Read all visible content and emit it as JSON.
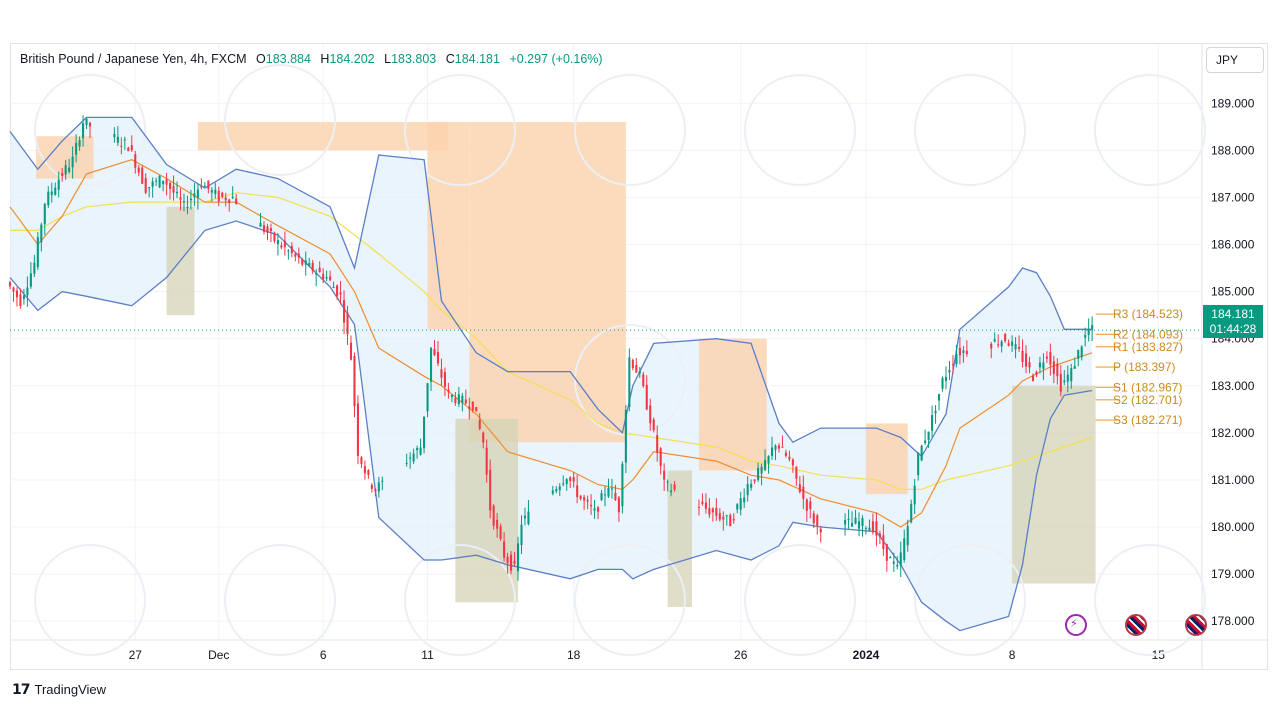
{
  "legend": {
    "symbol": "British Pound / Japanese Yen, 4h, FXCM",
    "o_label": "O",
    "o_value": "183.884",
    "h_label": "H",
    "h_value": "184.202",
    "l_label": "L",
    "l_value": "183.803",
    "c_label": "C",
    "c_value": "184.181",
    "change": "+0.297 (+0.16%)"
  },
  "currency": "JPY",
  "last_price": {
    "price": "184.181",
    "countdown": "01:44:28"
  },
  "brand": "TradingView",
  "colors": {
    "up": "#089981",
    "down": "#f23645",
    "bollinger": "#5b7fc7",
    "bollinger_fill": "#e3f0fb",
    "ma_fast": "#f08c2e",
    "ma_slow": "#f3df55",
    "supply_zone": "#fbd2ad",
    "demand_zone": "#d4d3b5",
    "pivot": "#f0a030"
  },
  "chart_data": {
    "type": "candlestick",
    "title": "British Pound / Japanese Yen, 4h, FXCM",
    "ylim": [
      177.6,
      189.6
    ],
    "y_ticks": [
      "189.000",
      "188.000",
      "187.000",
      "186.000",
      "185.000",
      "184.000",
      "183.000",
      "182.000",
      "181.000",
      "180.000",
      "179.000",
      "178.000"
    ],
    "x_ticks": [
      "27",
      "Dec",
      "6",
      "11",
      "18",
      "26",
      "2024",
      "8",
      "15"
    ],
    "x_range": [
      "2023-11-21",
      "2024-01-17"
    ],
    "grid": true,
    "price_path": [
      [
        "2023-11-21T00:00",
        185.2
      ],
      [
        "2023-11-21T16:00",
        184.8
      ],
      [
        "2023-11-22T08:00",
        185.6
      ],
      [
        "2023-11-22T20:00",
        186.9
      ],
      [
        "2023-11-23T12:00",
        187.4
      ],
      [
        "2023-11-24T04:00",
        187.8
      ],
      [
        "2023-11-24T16:00",
        188.6
      ],
      [
        "2023-11-26T20:00",
        188.1
      ],
      [
        "2023-11-27T16:00",
        187.2
      ],
      [
        "2023-11-28T12:00",
        187.4
      ],
      [
        "2023-11-29T12:00",
        186.8
      ],
      [
        "2023-11-30T08:00",
        187.3
      ],
      [
        "2023-12-01T04:00",
        187.0
      ],
      [
        "2023-12-01T20:00",
        187.0
      ],
      [
        "2023-12-03T20:00",
        186.1
      ],
      [
        "2023-12-05T04:00",
        185.6
      ],
      [
        "2023-12-06T08:00",
        185.3
      ],
      [
        "2023-12-07T00:00",
        184.9
      ],
      [
        "2023-12-07T12:00",
        183.6
      ],
      [
        "2023-12-07T20:00",
        181.6
      ],
      [
        "2023-12-08T08:00",
        181.0
      ],
      [
        "2023-12-08T16:00",
        180.8
      ],
      [
        "2023-12-10T20:00",
        181.7
      ],
      [
        "2023-12-11T08:00",
        183.8
      ],
      [
        "2023-12-11T16:00",
        183.4
      ],
      [
        "2023-12-12T04:00",
        182.8
      ],
      [
        "2023-12-12T16:00",
        182.7
      ],
      [
        "2023-12-13T08:00",
        182.6
      ],
      [
        "2023-12-13T20:00",
        181.8
      ],
      [
        "2023-12-14T04:00",
        180.4
      ],
      [
        "2023-12-14T20:00",
        179.4
      ],
      [
        "2023-12-15T08:00",
        179.1
      ],
      [
        "2023-12-15T16:00",
        180.1
      ],
      [
        "2023-12-17T20:00",
        181.1
      ],
      [
        "2023-12-18T12:00",
        180.6
      ],
      [
        "2023-12-19T04:00",
        180.3
      ],
      [
        "2023-12-19T20:00",
        180.9
      ],
      [
        "2023-12-20T08:00",
        180.4
      ],
      [
        "2023-12-20T20:00",
        183.6
      ],
      [
        "2023-12-21T08:00",
        183.2
      ],
      [
        "2023-12-21T20:00",
        182.3
      ],
      [
        "2023-12-22T12:00",
        180.9
      ],
      [
        "2023-12-24T20:00",
        180.3
      ],
      [
        "2023-12-25T16:00",
        180.1
      ],
      [
        "2023-12-26T12:00",
        180.9
      ],
      [
        "2023-12-27T08:00",
        181.3
      ],
      [
        "2023-12-27T20:00",
        181.8
      ],
      [
        "2023-12-28T12:00",
        181.4
      ],
      [
        "2023-12-29T04:00",
        180.6
      ],
      [
        "2023-12-29T20:00",
        180.0
      ],
      [
        "2023-12-31T20:00",
        180.1
      ],
      [
        "2024-01-01T12:00",
        180.0
      ],
      [
        "2024-01-02T04:00",
        179.4
      ],
      [
        "2024-01-02T16:00",
        179.1
      ],
      [
        "2024-01-03T04:00",
        180.0
      ],
      [
        "2024-01-03T16:00",
        181.5
      ],
      [
        "2024-01-04T08:00",
        182.3
      ],
      [
        "2024-01-04T20:00",
        183.1
      ],
      [
        "2024-01-05T12:00",
        183.7
      ],
      [
        "2024-01-07T20:00",
        184.0
      ],
      [
        "2024-01-08T12:00",
        183.7
      ],
      [
        "2024-01-09T04:00",
        183.2
      ],
      [
        "2024-01-09T20:00",
        183.7
      ],
      [
        "2024-01-10T12:00",
        183.0
      ],
      [
        "2024-01-11T00:00",
        183.3
      ],
      [
        "2024-01-11T12:00",
        183.9
      ],
      [
        "2024-01-11T20:00",
        184.181
      ]
    ],
    "bollinger_upper": [
      [
        "2023-11-21T00:00",
        188.4
      ],
      [
        "2023-11-22T08:00",
        187.6
      ],
      [
        "2023-11-23T12:00",
        188.2
      ],
      [
        "2023-11-24T16:00",
        188.7
      ],
      [
        "2023-11-26T20:00",
        188.7
      ],
      [
        "2023-11-28T12:00",
        187.7
      ],
      [
        "2023-11-30T08:00",
        187.2
      ],
      [
        "2023-12-01T20:00",
        187.6
      ],
      [
        "2023-12-03T20:00",
        187.4
      ],
      [
        "2023-12-06T08:00",
        186.8
      ],
      [
        "2023-12-07T12:00",
        185.5
      ],
      [
        "2023-12-08T16:00",
        187.9
      ],
      [
        "2023-12-10T20:00",
        187.8
      ],
      [
        "2023-12-11T16:00",
        184.8
      ],
      [
        "2023-12-13T08:00",
        183.7
      ],
      [
        "2023-12-14T20:00",
        183.3
      ],
      [
        "2023-12-17T20:00",
        183.3
      ],
      [
        "2023-12-19T04:00",
        182.5
      ],
      [
        "2023-12-20T08:00",
        182.0
      ],
      [
        "2023-12-20T20:00",
        183.0
      ],
      [
        "2023-12-21T20:00",
        183.9
      ],
      [
        "2023-12-24T20:00",
        184.0
      ],
      [
        "2023-12-26T12:00",
        183.9
      ],
      [
        "2023-12-27T20:00",
        182.2
      ],
      [
        "2023-12-28T12:00",
        181.8
      ],
      [
        "2023-12-29T20:00",
        182.1
      ],
      [
        "2024-01-01T12:00",
        182.1
      ],
      [
        "2024-01-02T16:00",
        181.9
      ],
      [
        "2024-01-03T16:00",
        181.5
      ],
      [
        "2024-01-04T20:00",
        182.4
      ],
      [
        "2024-01-05T12:00",
        184.2
      ],
      [
        "2024-01-07T20:00",
        185.1
      ],
      [
        "2024-01-08T12:00",
        185.5
      ],
      [
        "2024-01-09T04:00",
        185.4
      ],
      [
        "2024-01-09T20:00",
        184.9
      ],
      [
        "2024-01-10T12:00",
        184.2
      ],
      [
        "2024-01-11T20:00",
        184.2
      ]
    ],
    "bollinger_lower": [
      [
        "2023-11-21T00:00",
        185.3
      ],
      [
        "2023-11-22T08:00",
        184.6
      ],
      [
        "2023-11-23T12:00",
        185.0
      ],
      [
        "2023-11-24T16:00",
        184.9
      ],
      [
        "2023-11-26T20:00",
        184.7
      ],
      [
        "2023-11-28T12:00",
        185.3
      ],
      [
        "2023-11-30T08:00",
        186.3
      ],
      [
        "2023-12-01T20:00",
        186.5
      ],
      [
        "2023-12-03T20:00",
        186.2
      ],
      [
        "2023-12-06T08:00",
        185.1
      ],
      [
        "2023-12-07T12:00",
        184.3
      ],
      [
        "2023-12-08T16:00",
        180.2
      ],
      [
        "2023-12-10T20:00",
        179.3
      ],
      [
        "2023-12-11T16:00",
        179.3
      ],
      [
        "2023-12-13T08:00",
        179.4
      ],
      [
        "2023-12-14T20:00",
        179.2
      ],
      [
        "2023-12-17T20:00",
        178.9
      ],
      [
        "2023-12-19T04:00",
        179.1
      ],
      [
        "2023-12-20T08:00",
        179.1
      ],
      [
        "2023-12-20T20:00",
        178.9
      ],
      [
        "2023-12-21T20:00",
        179.1
      ],
      [
        "2023-12-24T20:00",
        179.5
      ],
      [
        "2023-12-26T12:00",
        179.3
      ],
      [
        "2023-12-27T20:00",
        179.6
      ],
      [
        "2023-12-28T12:00",
        180.1
      ],
      [
        "2023-12-29T20:00",
        180.0
      ],
      [
        "2024-01-01T12:00",
        179.9
      ],
      [
        "2024-01-02T16:00",
        179.2
      ],
      [
        "2024-01-03T16:00",
        178.4
      ],
      [
        "2024-01-04T20:00",
        178.0
      ],
      [
        "2024-01-05T12:00",
        177.8
      ],
      [
        "2024-01-07T20:00",
        178.1
      ],
      [
        "2024-01-08T12:00",
        179.2
      ],
      [
        "2024-01-09T04:00",
        181.1
      ],
      [
        "2024-01-09T20:00",
        182.3
      ],
      [
        "2024-01-10T12:00",
        182.8
      ],
      [
        "2024-01-11T20:00",
        182.9
      ]
    ],
    "ma_fast": [
      [
        "2023-11-21T00:00",
        186.8
      ],
      [
        "2023-11-22T08:00",
        186.0
      ],
      [
        "2023-11-23T12:00",
        186.6
      ],
      [
        "2023-11-24T16:00",
        187.5
      ],
      [
        "2023-11-26T20:00",
        187.8
      ],
      [
        "2023-11-28T12:00",
        187.4
      ],
      [
        "2023-11-30T08:00",
        186.9
      ],
      [
        "2023-12-01T20:00",
        186.9
      ],
      [
        "2023-12-03T20:00",
        186.4
      ],
      [
        "2023-12-06T08:00",
        185.8
      ],
      [
        "2023-12-07T12:00",
        185.0
      ],
      [
        "2023-12-08T16:00",
        183.8
      ],
      [
        "2023-12-10T20:00",
        183.2
      ],
      [
        "2023-12-11T16:00",
        183.0
      ],
      [
        "2023-12-13T08:00",
        182.4
      ],
      [
        "2023-12-14T20:00",
        181.6
      ],
      [
        "2023-12-17T20:00",
        181.2
      ],
      [
        "2023-12-19T04:00",
        180.9
      ],
      [
        "2023-12-20T08:00",
        180.8
      ],
      [
        "2023-12-20T20:00",
        181.0
      ],
      [
        "2023-12-21T20:00",
        181.6
      ],
      [
        "2023-12-24T20:00",
        181.4
      ],
      [
        "2023-12-26T12:00",
        181.1
      ],
      [
        "2023-12-27T20:00",
        181.0
      ],
      [
        "2023-12-29T20:00",
        180.6
      ],
      [
        "2024-01-01T12:00",
        180.3
      ],
      [
        "2024-01-02T16:00",
        180.0
      ],
      [
        "2024-01-03T16:00",
        180.3
      ],
      [
        "2024-01-04T20:00",
        181.3
      ],
      [
        "2024-01-05T12:00",
        182.1
      ],
      [
        "2024-01-07T20:00",
        182.8
      ],
      [
        "2024-01-08T12:00",
        183.1
      ],
      [
        "2024-01-09T20:00",
        183.4
      ],
      [
        "2024-01-11T20:00",
        183.7
      ]
    ],
    "ma_slow": [
      [
        "2023-11-21T00:00",
        186.3
      ],
      [
        "2023-11-22T08:00",
        186.3
      ],
      [
        "2023-11-23T12:00",
        186.6
      ],
      [
        "2023-11-24T16:00",
        186.8
      ],
      [
        "2023-11-26T20:00",
        186.9
      ],
      [
        "2023-11-28T12:00",
        186.9
      ],
      [
        "2023-11-30T08:00",
        186.9
      ],
      [
        "2023-12-01T20:00",
        187.1
      ],
      [
        "2023-12-03T20:00",
        187.0
      ],
      [
        "2023-12-06T08:00",
        186.6
      ],
      [
        "2023-12-07T12:00",
        186.2
      ],
      [
        "2023-12-08T16:00",
        185.8
      ],
      [
        "2023-12-10T20:00",
        185.0
      ],
      [
        "2023-12-11T16:00",
        184.6
      ],
      [
        "2023-12-13T08:00",
        184.0
      ],
      [
        "2023-12-14T20:00",
        183.3
      ],
      [
        "2023-12-17T20:00",
        182.7
      ],
      [
        "2023-12-19T04:00",
        182.2
      ],
      [
        "2023-12-20T08:00",
        182.0
      ],
      [
        "2023-12-21T20:00",
        181.9
      ],
      [
        "2023-12-24T20:00",
        181.7
      ],
      [
        "2023-12-26T12:00",
        181.4
      ],
      [
        "2023-12-27T20:00",
        181.3
      ],
      [
        "2023-12-29T20:00",
        181.1
      ],
      [
        "2024-01-01T12:00",
        181.0
      ],
      [
        "2024-01-02T16:00",
        180.8
      ],
      [
        "2024-01-03T16:00",
        180.8
      ],
      [
        "2024-01-04T20:00",
        181.0
      ],
      [
        "2024-01-07T20:00",
        181.3
      ],
      [
        "2024-01-09T20:00",
        181.6
      ],
      [
        "2024-01-11T20:00",
        181.9
      ]
    ],
    "supply_zones": [
      {
        "x0": "2023-11-22T06:00",
        "x1": "2023-11-25T00:00",
        "y0": 187.4,
        "y1": 188.3
      },
      {
        "x0": "2023-11-30T00:00",
        "x1": "2023-12-12T00:00",
        "y0": 188.6,
        "y1": 188.0
      },
      {
        "x0": "2023-12-11T00:00",
        "x1": "2023-12-13T00:00",
        "y0": 188.6,
        "y1": 184.2
      },
      {
        "x0": "2023-12-13T00:00",
        "x1": "2023-12-20T12:00",
        "y0": 188.6,
        "y1": 181.8
      },
      {
        "x0": "2023-12-24T00:00",
        "x1": "2023-12-27T06:00",
        "y0": 184.0,
        "y1": 181.2
      },
      {
        "x0": "2024-01-01T00:00",
        "x1": "2024-01-03T00:00",
        "y0": 182.2,
        "y1": 180.7
      }
    ],
    "demand_zones": [
      {
        "x0": "2023-11-28T12:00",
        "x1": "2023-11-29T20:00",
        "y0": 186.8,
        "y1": 184.5
      },
      {
        "x0": "2023-12-12T08:00",
        "x1": "2023-12-15T08:00",
        "y0": 182.3,
        "y1": 178.4
      },
      {
        "x0": "2023-12-22T12:00",
        "x1": "2023-12-23T16:00",
        "y0": 181.2,
        "y1": 178.3
      },
      {
        "x0": "2024-01-08T00:00",
        "x1": "2024-01-12T00:00",
        "y0": 183.0,
        "y1": 178.8
      }
    ],
    "pivots": [
      {
        "label": "R3 (184.523)",
        "value": 184.523
      },
      {
        "label": "R2 (184.093)",
        "value": 184.093
      },
      {
        "label": "R1 (183.827)",
        "value": 183.827
      },
      {
        "label": "P (183.397)",
        "value": 183.397
      },
      {
        "label": "S1 (182.967)",
        "value": 182.967
      },
      {
        "label": "S2 (182.701)",
        "value": 182.701
      },
      {
        "label": "S3 (182.271)",
        "value": 182.271
      }
    ],
    "last_price": 184.181
  }
}
